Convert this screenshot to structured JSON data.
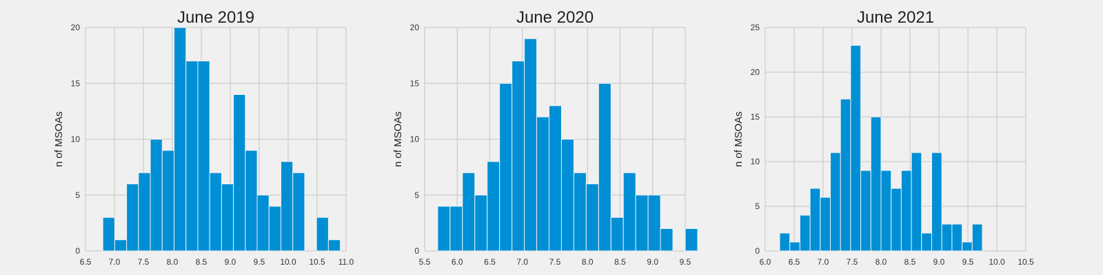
{
  "chart_data": [
    {
      "type": "bar",
      "title": "June 2019",
      "xlabel": "",
      "ylabel": "n of MSOAs",
      "xlim": [
        6.5,
        11.0
      ],
      "ylim": [
        0,
        20
      ],
      "xticks": [
        "6.5",
        "7.0",
        "7.5",
        "8.0",
        "8.5",
        "9.0",
        "9.5",
        "10.0",
        "10.5",
        "11.0"
      ],
      "yticks": [
        "0",
        "5",
        "10",
        "15",
        "20"
      ],
      "bin_start": 6.8,
      "bin_width": 0.205,
      "values": [
        3,
        1,
        6,
        7,
        10,
        9,
        20,
        17,
        17,
        7,
        6,
        14,
        9,
        5,
        4,
        8,
        7,
        0,
        3,
        1
      ],
      "grid": true,
      "color": "#008fd5"
    },
    {
      "type": "bar",
      "title": "June 2020",
      "xlabel": "",
      "ylabel": "n of MSOAs",
      "xlim": [
        5.5,
        9.5
      ],
      "ylim": [
        0,
        20
      ],
      "xticks": [
        "5.5",
        "6.0",
        "6.5",
        "7.0",
        "7.5",
        "8.0",
        "8.5",
        "9.0",
        "9.5"
      ],
      "yticks": [
        "0",
        "5",
        "10",
        "15",
        "20"
      ],
      "bin_start": 5.7,
      "bin_width": 0.19,
      "values": [
        4,
        4,
        7,
        5,
        8,
        15,
        17,
        19,
        12,
        13,
        10,
        7,
        6,
        15,
        3,
        7,
        5,
        5,
        2,
        0,
        2
      ],
      "grid": true,
      "color": "#008fd5"
    },
    {
      "type": "bar",
      "title": "June 2021",
      "xlabel": "",
      "ylabel": "n of MSOAs",
      "xlim": [
        6.0,
        10.5
      ],
      "ylim": [
        0,
        25
      ],
      "xticks": [
        "6.0",
        "6.5",
        "7.0",
        "7.5",
        "8.0",
        "8.5",
        "9.0",
        "9.5",
        "10.0",
        "10.5"
      ],
      "yticks": [
        "0",
        "5",
        "10",
        "15",
        "20",
        "25"
      ],
      "bin_start": 6.25,
      "bin_width": 0.175,
      "values": [
        2,
        1,
        4,
        7,
        6,
        11,
        17,
        23,
        9,
        15,
        9,
        7,
        9,
        11,
        2,
        11,
        3,
        3,
        1,
        3
      ],
      "grid": true,
      "color": "#008fd5"
    }
  ]
}
